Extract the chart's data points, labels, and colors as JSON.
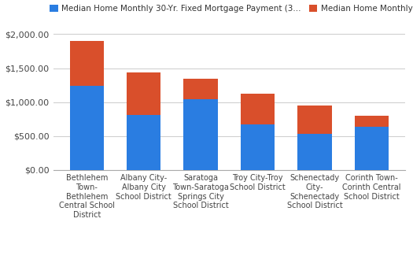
{
  "categories": [
    "Bethlehem\nTown-\nBethlehem\nCentral School\nDistrict",
    "Albany City-\nAlbany City\nSchool District",
    "Saratoga\nTown-Saratoga\nSprings City\nSchool District",
    "Troy City-Troy\nSchool District",
    "Schenectady\nCity-\nSchenectady\nSchool District",
    "Corinth Town-\nCorinth Central\nSchool District"
  ],
  "mortgage_values": [
    1240,
    810,
    1040,
    670,
    530,
    630
  ],
  "tax_values": [
    660,
    630,
    300,
    450,
    420,
    170
  ],
  "bar_color_mortgage": "#2a7de1",
  "bar_color_tax": "#d94f2b",
  "legend_mortgage": "Median Home Monthly 30-Yr. Fixed Mortgage Payment (3...",
  "legend_tax": "Median Home Monthly Tax Payment",
  "ylim": [
    0,
    2100
  ],
  "ytick_values": [
    0,
    500,
    1000,
    1500,
    2000
  ],
  "ytick_labels": [
    "$0.00",
    "$500.00",
    "$1,000.00",
    "$1,500.00",
    "$2,000.00"
  ],
  "background_color": "#ffffff",
  "grid_color": "#d0d0d0",
  "bar_width": 0.6
}
